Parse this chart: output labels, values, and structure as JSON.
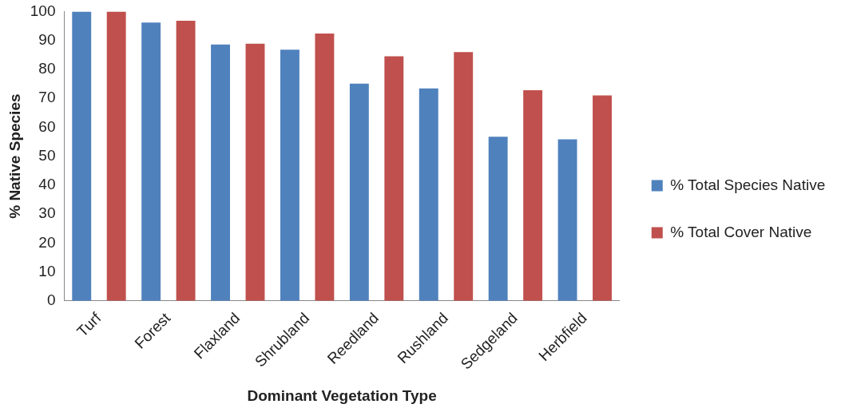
{
  "chart_data": {
    "type": "bar",
    "xlabel": "Dominant Vegetation Type",
    "ylabel": "% Native Species",
    "categories": [
      "Turf",
      "Forest",
      "Flaxland",
      "Shrubland",
      "Reedland",
      "Rushland",
      "Sedgeland",
      "Herbfield"
    ],
    "series": [
      {
        "name": "% Total Species Native",
        "color": "#4f81bd",
        "values": [
          100,
          96.2,
          88.6,
          86.8,
          75.1,
          73.4,
          56.7,
          55.8
        ]
      },
      {
        "name": "% Total Cover Native",
        "color": "#c0504d",
        "values": [
          100,
          96.8,
          88.9,
          92.4,
          84.5,
          86.0,
          72.8,
          71.0
        ]
      }
    ],
    "ylim": [
      0,
      100
    ],
    "yticks": [
      0,
      10,
      20,
      30,
      40,
      50,
      60,
      70,
      80,
      90,
      100
    ],
    "grid": false,
    "legend": "right"
  }
}
